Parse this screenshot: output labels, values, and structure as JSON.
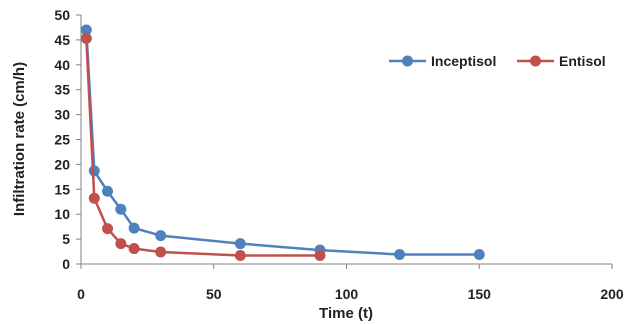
{
  "chart_data": {
    "type": "line",
    "title": "",
    "xlabel": "Time (t)",
    "ylabel": "Infiltration rate (cm/h)",
    "xlim": [
      0,
      200
    ],
    "ylim": [
      0,
      50
    ],
    "xticks": [
      "0",
      "50",
      "100",
      "150",
      "200"
    ],
    "yticks": [
      "0",
      "5",
      "10",
      "15",
      "20",
      "25",
      "30",
      "35",
      "40",
      "45",
      "50"
    ],
    "grid": false,
    "legend_position": "top-right",
    "series": [
      {
        "name": "Inceptisol",
        "color": "#4f81bd",
        "x": [
          2,
          5,
          10,
          15,
          20,
          30,
          60,
          90,
          120,
          150
        ],
        "y": [
          47,
          18.7,
          14.6,
          11,
          7.2,
          5.7,
          4.1,
          2.8,
          1.9,
          1.9
        ]
      },
      {
        "name": "Entisol",
        "color": "#c0504d",
        "x": [
          2,
          5,
          10,
          15,
          20,
          30,
          60,
          90
        ],
        "y": [
          45.3,
          13.2,
          7.1,
          4.1,
          3.1,
          2.4,
          1.7,
          1.7
        ]
      }
    ]
  }
}
